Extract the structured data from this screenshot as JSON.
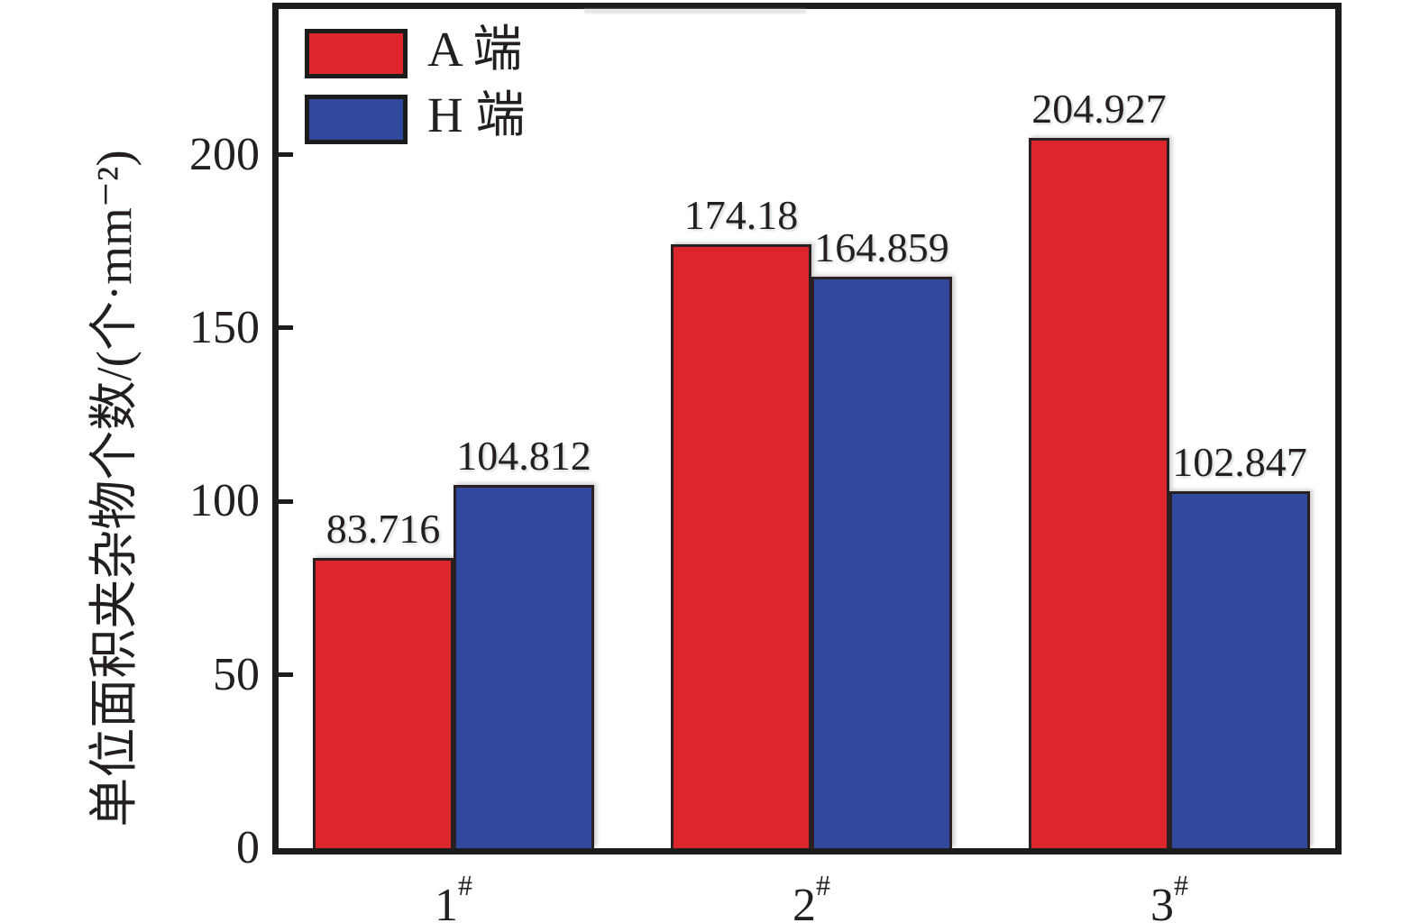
{
  "figure": {
    "background": "#ffffff",
    "axis_color": "#1c1c1c",
    "text_color": "#231f20"
  },
  "chart_data": {
    "type": "bar",
    "title": "",
    "xlabel": "",
    "ylabel": "单位面积夹杂物个数/(个·mm⁻²)",
    "categories": [
      {
        "base": "1",
        "sup": "#"
      },
      {
        "base": "2",
        "sup": "#"
      },
      {
        "base": "3",
        "sup": "#"
      }
    ],
    "series": [
      {
        "name": "A 端",
        "color": "#dc262c",
        "values": [
          83.716,
          174.18,
          204.927
        ],
        "labels": [
          "83.716",
          "174.18",
          "204.927"
        ]
      },
      {
        "name": "H 端",
        "color": "#30499e",
        "values": [
          104.812,
          164.859,
          102.847
        ],
        "labels": [
          "104.812",
          "164.859",
          "102.847"
        ]
      }
    ],
    "y_ticks": [
      0,
      50,
      100,
      150,
      200
    ],
    "ylim": [
      0,
      242
    ],
    "grid": false,
    "legend_position": "top-left-inside",
    "bar_outline_color": "#2a2021"
  }
}
